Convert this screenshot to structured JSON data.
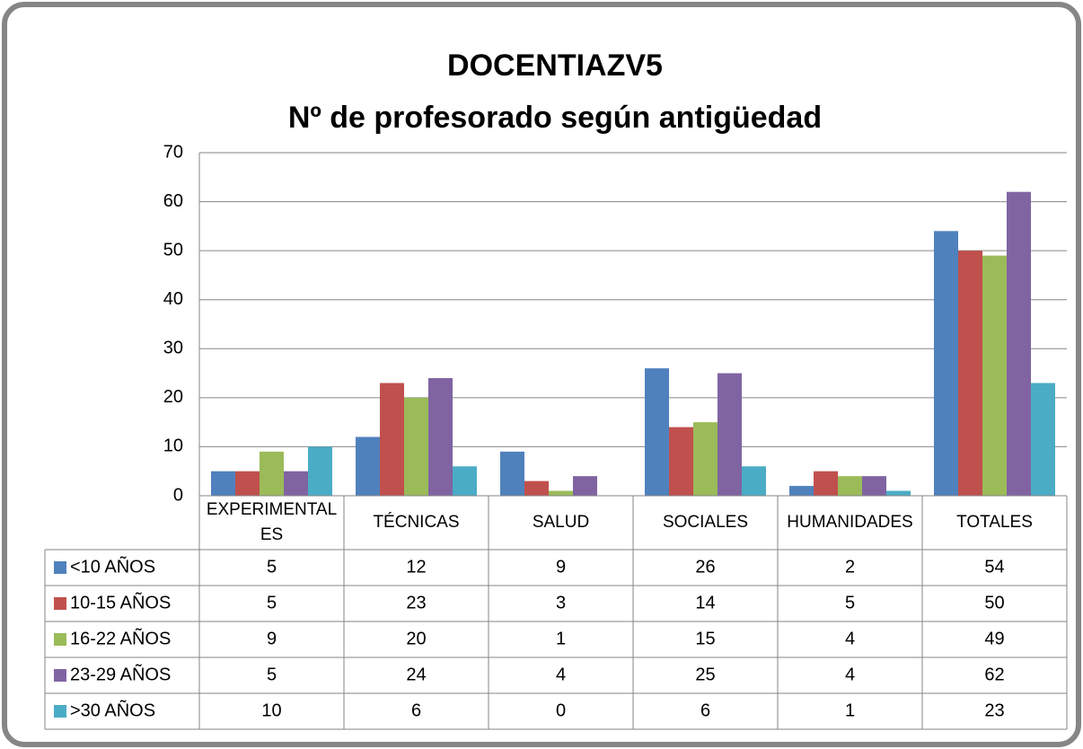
{
  "chart_data": {
    "type": "bar",
    "title": "DOCENTIAZV5",
    "subtitle": "Nº de profesorado según antigüedad",
    "categories": [
      "EXPERIMENTALES",
      "TÉCNICAS",
      "SALUD",
      "SOCIALES",
      "HUMANIDADES",
      "TOTALES"
    ],
    "series": [
      {
        "name": "<10 AÑOS",
        "color": "#4f81bd",
        "values": [
          5,
          12,
          9,
          26,
          2,
          54
        ]
      },
      {
        "name": "10-15 AÑOS",
        "color": "#c0504d",
        "values": [
          5,
          23,
          3,
          14,
          5,
          50
        ]
      },
      {
        "name": "16-22 AÑOS",
        "color": "#9bbb59",
        "values": [
          9,
          20,
          1,
          15,
          4,
          49
        ]
      },
      {
        "name": "23-29 AÑOS",
        "color": "#8064a2",
        "values": [
          5,
          24,
          4,
          25,
          4,
          62
        ]
      },
      {
        "name": ">30 AÑOS",
        "color": "#4bacc6",
        "values": [
          10,
          6,
          0,
          6,
          1,
          23
        ]
      }
    ],
    "ylim": [
      0,
      70
    ],
    "yticks": [
      0,
      10,
      20,
      30,
      40,
      50,
      60,
      70
    ],
    "grid": true,
    "data_table": true
  }
}
